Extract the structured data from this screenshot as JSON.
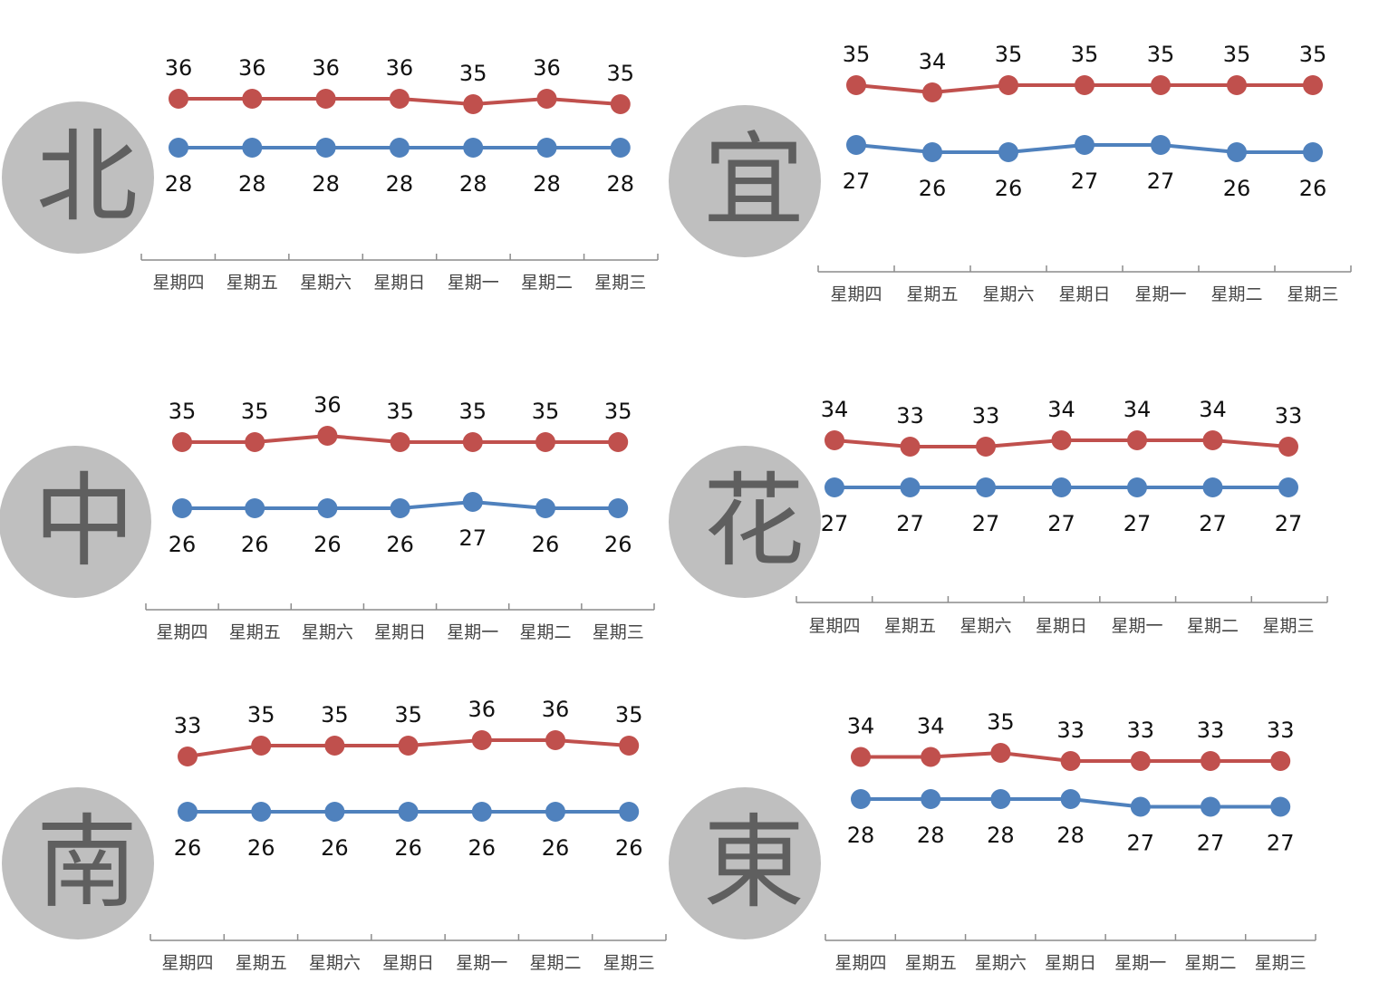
{
  "colors": {
    "high": "#C0504D",
    "low": "#4F81BD",
    "badge": "#BFBFBF",
    "axis": "#8C8C8C"
  },
  "chart_data": [
    {
      "type": "line",
      "region": "北",
      "categories": [
        "星期四",
        "星期五",
        "星期六",
        "星期日",
        "星期一",
        "星期二",
        "星期三"
      ],
      "series": [
        {
          "values": [
            36,
            36,
            36,
            36,
            35,
            36,
            35
          ]
        },
        {
          "values": [
            28,
            28,
            28,
            28,
            28,
            28,
            28
          ]
        }
      ]
    },
    {
      "type": "line",
      "region": "宜",
      "categories": [
        "星期四",
        "星期五",
        "星期六",
        "星期日",
        "星期一",
        "星期二",
        "星期三"
      ],
      "series": [
        {
          "values": [
            35,
            34,
            35,
            35,
            35,
            35,
            35
          ]
        },
        {
          "values": [
            27,
            26,
            26,
            27,
            27,
            26,
            26
          ]
        }
      ]
    },
    {
      "type": "line",
      "region": "中",
      "categories": [
        "星期四",
        "星期五",
        "星期六",
        "星期日",
        "星期一",
        "星期二",
        "星期三"
      ],
      "series": [
        {
          "values": [
            35,
            35,
            36,
            35,
            35,
            35,
            35
          ]
        },
        {
          "values": [
            26,
            26,
            26,
            26,
            27,
            26,
            26
          ]
        }
      ]
    },
    {
      "type": "line",
      "region": "花",
      "categories": [
        "星期四",
        "星期五",
        "星期六",
        "星期日",
        "星期一",
        "星期二",
        "星期三"
      ],
      "series": [
        {
          "values": [
            34,
            33,
            33,
            34,
            34,
            34,
            33
          ]
        },
        {
          "values": [
            27,
            27,
            27,
            27,
            27,
            27,
            27
          ]
        }
      ]
    },
    {
      "type": "line",
      "region": "南",
      "categories": [
        "星期四",
        "星期五",
        "星期六",
        "星期日",
        "星期一",
        "星期二",
        "星期三"
      ],
      "series": [
        {
          "values": [
            33,
            35,
            35,
            35,
            36,
            36,
            35
          ]
        },
        {
          "values": [
            26,
            26,
            26,
            26,
            26,
            26,
            26
          ]
        }
      ]
    },
    {
      "type": "line",
      "region": "東",
      "categories": [
        "星期四",
        "星期五",
        "星期六",
        "星期日",
        "星期一",
        "星期二",
        "星期三"
      ],
      "series": [
        {
          "values": [
            34,
            34,
            35,
            33,
            33,
            33,
            33
          ]
        },
        {
          "values": [
            28,
            28,
            28,
            28,
            27,
            27,
            27
          ]
        }
      ]
    }
  ]
}
